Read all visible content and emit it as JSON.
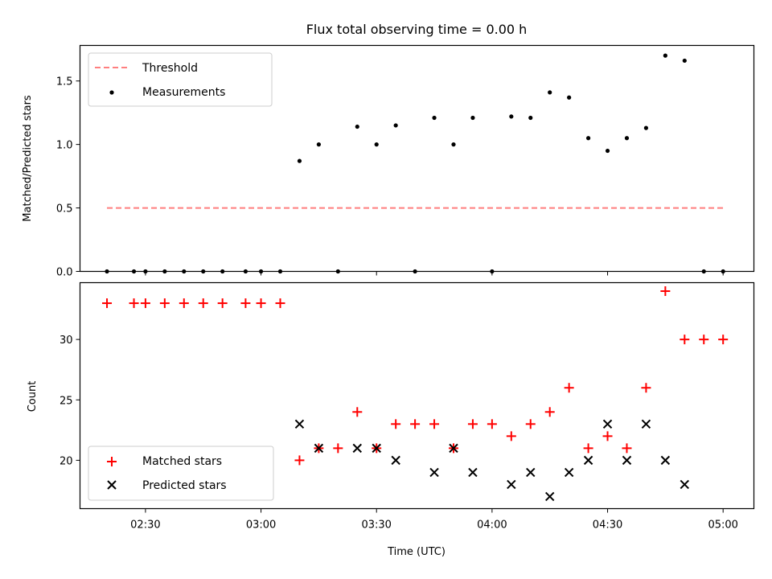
{
  "chart_data": [
    {
      "type": "scatter",
      "title": "Flux total observing time = 0.00 h",
      "xlabel": "",
      "ylabel": "Matched/Predicted stars",
      "ylim": [
        0,
        1.78
      ],
      "yticks": [
        "0.0",
        "0.5",
        "1.0",
        "1.5"
      ],
      "legend_position": "top-left",
      "legend": [
        "Threshold",
        "Measurements"
      ],
      "threshold": {
        "name": "Threshold",
        "value": 0.5,
        "x_start": "02:20",
        "x_end": "05:00",
        "color": "#ff7f7f",
        "style": "dashed"
      },
      "series": [
        {
          "name": "Measurements",
          "color": "#000000",
          "marker": "dot",
          "x": [
            "02:20",
            "02:27",
            "02:30",
            "02:35",
            "02:40",
            "02:45",
            "02:50",
            "02:56",
            "03:00",
            "03:05",
            "03:10",
            "03:15",
            "03:20",
            "03:25",
            "03:30",
            "03:35",
            "03:40",
            "03:45",
            "03:50",
            "03:55",
            "04:00",
            "04:05",
            "04:10",
            "04:15",
            "04:20",
            "04:25",
            "04:30",
            "04:35",
            "04:40",
            "04:45",
            "04:50",
            "04:55",
            "05:00"
          ],
          "y": [
            0,
            0,
            0,
            0,
            0,
            0,
            0,
            0,
            0,
            0,
            0.87,
            1.0,
            0,
            1.14,
            1.0,
            1.15,
            0,
            1.21,
            1.0,
            1.21,
            0,
            1.22,
            1.21,
            1.41,
            1.37,
            1.05,
            0.95,
            1.05,
            1.13,
            1.7,
            1.66,
            0,
            0
          ]
        }
      ]
    },
    {
      "type": "scatter",
      "title": "",
      "xlabel": "Time (UTC)",
      "ylabel": "Count",
      "ylim": [
        16,
        34.7
      ],
      "yticks": [
        "20",
        "25",
        "30"
      ],
      "xlim": [
        "02:13",
        "05:08"
      ],
      "xticks": [
        "02:30",
        "03:00",
        "03:30",
        "04:00",
        "04:30",
        "05:00"
      ],
      "legend_position": "bottom-left",
      "legend": [
        "Matched stars",
        "Predicted stars"
      ],
      "series": [
        {
          "name": "Matched stars",
          "color": "#ff0000",
          "marker": "plus",
          "x": [
            "02:20",
            "02:27",
            "02:30",
            "02:35",
            "02:40",
            "02:45",
            "02:50",
            "02:56",
            "03:00",
            "03:05",
            "03:10",
            "03:15",
            "03:20",
            "03:25",
            "03:30",
            "03:35",
            "03:40",
            "03:45",
            "03:50",
            "03:55",
            "04:00",
            "04:05",
            "04:10",
            "04:15",
            "04:20",
            "04:25",
            "04:30",
            "04:35",
            "04:40",
            "04:45",
            "04:50",
            "04:55",
            "05:00"
          ],
          "y": [
            33,
            33,
            33,
            33,
            33,
            33,
            33,
            33,
            33,
            33,
            20,
            21,
            21,
            24,
            21,
            23,
            23,
            23,
            21,
            23,
            23,
            22,
            23,
            24,
            26,
            21,
            22,
            21,
            26,
            34,
            30,
            30,
            30
          ]
        },
        {
          "name": "Predicted stars",
          "color": "#000000",
          "marker": "x",
          "x": [
            "03:10",
            "03:15",
            "03:25",
            "03:30",
            "03:35",
            "03:45",
            "03:50",
            "03:55",
            "04:05",
            "04:10",
            "04:15",
            "04:20",
            "04:25",
            "04:30",
            "04:35",
            "04:40",
            "04:45",
            "04:50"
          ],
          "y": [
            23,
            21,
            21,
            21,
            20,
            19,
            21,
            19,
            18,
            19,
            17,
            19,
            20,
            23,
            20,
            23,
            20,
            18
          ]
        }
      ]
    }
  ]
}
